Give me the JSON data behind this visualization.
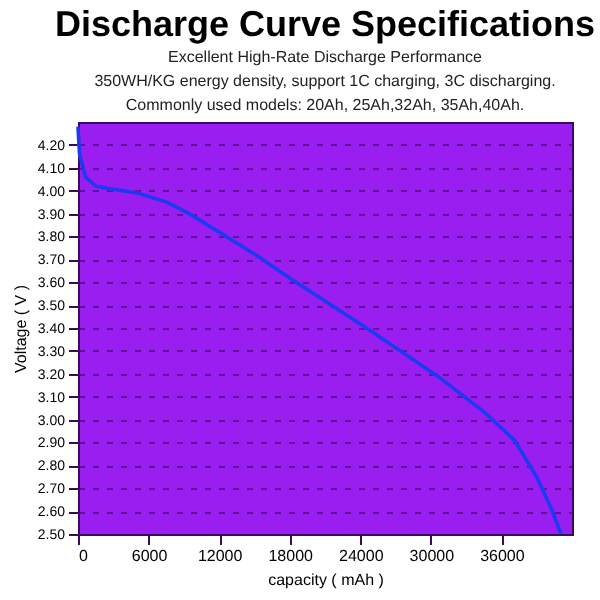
{
  "chart_data": {
    "type": "line",
    "title": "Discharge Curve Specifications",
    "subtitle": "Excellent High-Rate Discharge Performance",
    "annotations": [
      "350WH/KG energy density, support 1C charging, 3C discharging.",
      "Commonly used models: 20Ah, 25Ah,32Ah, 35Ah,40Ah."
    ],
    "xlabel": "capacity ( mAh )",
    "ylabel": "Voltage ( V )",
    "x": [
      0,
      130,
      640,
      1500,
      2530,
      5040,
      7560,
      9450,
      11970,
      15100,
      18250,
      24530,
      30830,
      34600,
      37100,
      38990,
      40250,
      41070
    ],
    "series": [
      {
        "color": "#1a3cf0",
        "values": [
          4.28,
          4.16,
          4.06,
          4.02,
          4.01,
          3.99,
          3.95,
          3.9,
          3.82,
          3.72,
          3.61,
          3.4,
          3.18,
          3.03,
          2.91,
          2.75,
          2.61,
          2.5
        ]
      }
    ],
    "xlim": [
      0,
      42000
    ],
    "xticks": [
      0,
      6000,
      12000,
      18000,
      24000,
      30000,
      36000
    ],
    "ylim": [
      2.5,
      4.3
    ],
    "yticks": [
      {
        "value": 2.5,
        "label": "2.50"
      },
      {
        "value": 2.6,
        "label": "2.60"
      },
      {
        "value": 2.7,
        "label": "2.70"
      },
      {
        "value": 2.8,
        "label": "2.80"
      },
      {
        "value": 2.9,
        "label": "2.90"
      },
      {
        "value": 3.0,
        "label": "3.00"
      },
      {
        "value": 3.1,
        "label": "3.10"
      },
      {
        "value": 3.2,
        "label": "3.20"
      },
      {
        "value": 3.3,
        "label": "3.30"
      },
      {
        "value": 3.4,
        "label": "3.40"
      },
      {
        "value": 3.5,
        "label": "3.50"
      },
      {
        "value": 3.6,
        "label": "3.60"
      },
      {
        "value": 3.7,
        "label": "3.70"
      },
      {
        "value": 3.8,
        "label": "3.80"
      },
      {
        "value": 3.9,
        "label": "3.90"
      },
      {
        "value": 4.0,
        "label": "4.00"
      },
      {
        "value": 4.1,
        "label": "4.10"
      },
      {
        "value": 4.2,
        "label": "4.20"
      }
    ],
    "grid": "y",
    "legend": false,
    "marker": "none",
    "line_style": "solid"
  }
}
